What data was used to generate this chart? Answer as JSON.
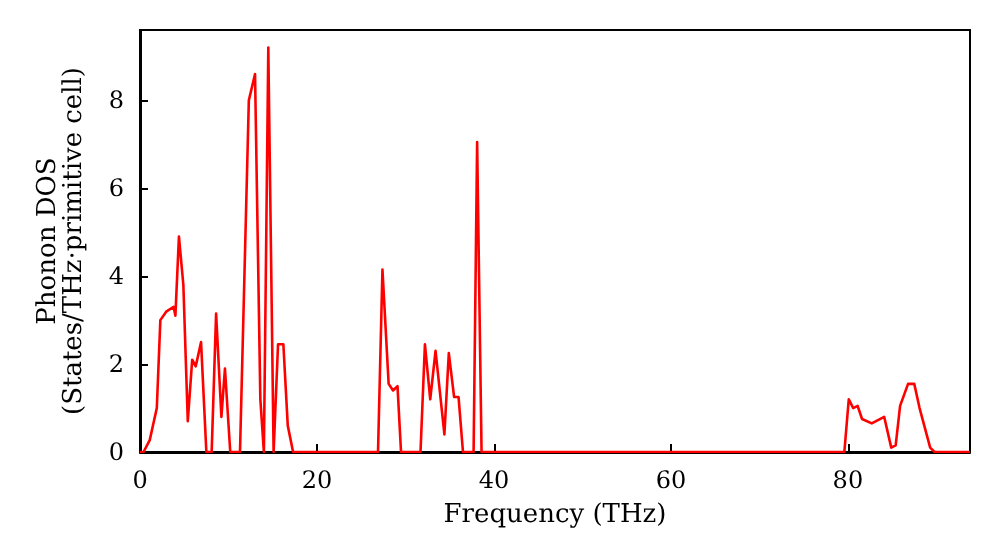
{
  "chart_data": {
    "type": "line",
    "xlabel": "Frequency (THz)",
    "ylabel": "Phonon DOS\n(States/THz·primitive cell)",
    "x": [
      0,
      0.4,
      1.1,
      1.9,
      2.3,
      3.0,
      3.8,
      4.0,
      4.4,
      4.9,
      5.4,
      5.9,
      6.3,
      6.9,
      7.5,
      8.1,
      8.6,
      9.2,
      9.6,
      10.2,
      11.3,
      12.3,
      13.0,
      13.6,
      14.0,
      14.5,
      15.1,
      15.6,
      16.2,
      16.7,
      17.3,
      26.9,
      27.4,
      28.1,
      28.6,
      29.1,
      29.5,
      31.7,
      32.2,
      32.8,
      33.4,
      34.4,
      34.9,
      35.5,
      36.0,
      36.5,
      37.7,
      38.1,
      38.6,
      79.6,
      80.1,
      80.6,
      81.1,
      81.6,
      82.7,
      84.1,
      84.9,
      85.4,
      85.9,
      86.8,
      87.5,
      88.1,
      89.3,
      89.8,
      93.8
    ],
    "series": [
      {
        "color": "#ff0000",
        "values": [
          0,
          0,
          0.27,
          1.0,
          3.0,
          3.2,
          3.3,
          3.1,
          4.9,
          3.8,
          0.7,
          2.1,
          1.95,
          2.5,
          0,
          0,
          3.15,
          0.8,
          1.9,
          0,
          0,
          8.0,
          8.6,
          1.2,
          0,
          9.2,
          0,
          2.45,
          2.45,
          0.6,
          0,
          0,
          4.15,
          1.55,
          1.4,
          1.5,
          0,
          0,
          2.45,
          1.2,
          2.3,
          0.4,
          2.25,
          1.25,
          1.25,
          0,
          0,
          7.05,
          0,
          0,
          1.2,
          1.0,
          1.05,
          0.75,
          0.65,
          0.8,
          0.1,
          0.15,
          1.05,
          1.55,
          1.55,
          1.0,
          0.1,
          0,
          0
        ]
      }
    ],
    "xlim": [
      0,
      93.8
    ],
    "ylim": [
      0,
      9.6
    ],
    "xticks": [
      0,
      20,
      40,
      60,
      80
    ],
    "yticks": [
      0,
      2,
      4,
      6,
      8
    ],
    "grid": false,
    "marker": "none",
    "line_style": "solid"
  }
}
